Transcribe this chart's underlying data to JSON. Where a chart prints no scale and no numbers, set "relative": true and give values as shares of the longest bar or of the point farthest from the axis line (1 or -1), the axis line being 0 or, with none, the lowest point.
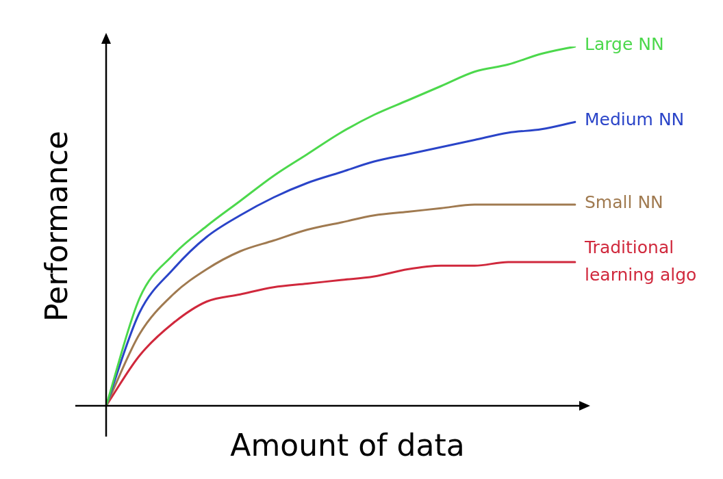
{
  "chart_data": {
    "type": "line",
    "relative": true,
    "xlabel": "Amount of data",
    "ylabel": "Performance",
    "marker": "none",
    "legend": false,
    "categories": [
      null,
      null,
      null,
      null,
      null,
      null,
      null,
      null,
      null,
      null,
      null,
      null,
      null,
      null,
      null
    ],
    "series": [
      {
        "name": "Large NN",
        "color": "#4cd84c",
        "values": [
          0,
          0.3,
          0.42,
          0.5,
          0.57,
          0.64,
          0.7,
          0.76,
          0.81,
          0.85,
          0.89,
          0.93,
          0.95,
          0.98,
          1
        ]
      },
      {
        "name": "Medium NN",
        "color": "#2a44c8",
        "values": [
          0,
          0.26,
          0.38,
          0.47,
          0.53,
          0.58,
          0.62,
          0.65,
          0.68,
          0.7,
          0.72,
          0.74,
          0.76,
          0.77,
          0.79
        ]
      },
      {
        "name": "Small NN",
        "color": "#a07a50",
        "values": [
          0,
          0.2,
          0.31,
          0.38,
          0.43,
          0.46,
          0.49,
          0.51,
          0.53,
          0.54,
          0.55,
          0.56,
          0.56,
          0.56,
          0.56
        ]
      },
      {
        "name": "Traditional learning algo",
        "color": "#d0283c",
        "values": [
          0,
          0.14,
          0.23,
          0.29,
          0.31,
          0.33,
          0.34,
          0.35,
          0.36,
          0.38,
          0.39,
          0.39,
          0.4,
          0.4,
          0.4
        ]
      }
    ]
  }
}
